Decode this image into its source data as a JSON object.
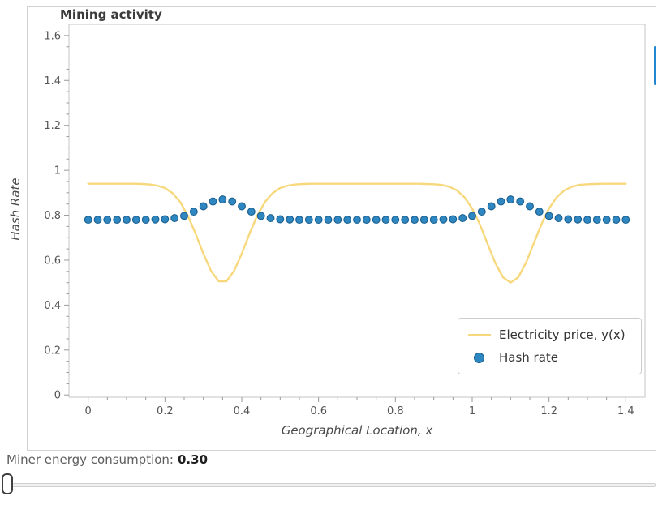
{
  "chart_data": {
    "type": "line",
    "title": "Mining activity",
    "xlabel": "Geographical Location, x",
    "ylabel": "Hash Rate",
    "xlim": [
      -0.05,
      1.45
    ],
    "ylim": [
      -0.01,
      1.65
    ],
    "x_ticks": [
      0,
      0.2,
      0.4,
      0.6,
      0.8,
      1,
      1.2,
      1.4
    ],
    "x_tick_labels": [
      "0",
      "0.2",
      "0.4",
      "0.6",
      "0.8",
      "1",
      "1.2",
      "1.4"
    ],
    "y_ticks": [
      0,
      0.2,
      0.4,
      0.6,
      0.8,
      1,
      1.2,
      1.4,
      1.6
    ],
    "y_tick_labels": [
      "0",
      "0.2",
      "0.4",
      "0.6",
      "0.8",
      "1",
      "1.2",
      "1.4",
      "1.6"
    ],
    "minor_tick_step": 0.05,
    "grid": false,
    "legend_position": "lower right",
    "series": [
      {
        "name": "Electricity price, y(x)",
        "type": "line",
        "color": "#f8d87c",
        "x": [
          0,
          0.02,
          0.04,
          0.06,
          0.08,
          0.1,
          0.12,
          0.14,
          0.16,
          0.18,
          0.2,
          0.22,
          0.24,
          0.26,
          0.28,
          0.3,
          0.32,
          0.34,
          0.36,
          0.38,
          0.4,
          0.42,
          0.44,
          0.46,
          0.48,
          0.5,
          0.52,
          0.54,
          0.56,
          0.58,
          0.6,
          0.62,
          0.64,
          0.66,
          0.68,
          0.7,
          0.72,
          0.74,
          0.76,
          0.78,
          0.8,
          0.82,
          0.84,
          0.86,
          0.88,
          0.9,
          0.92,
          0.94,
          0.96,
          0.98,
          1,
          1.02,
          1.04,
          1.06,
          1.08,
          1.1,
          1.12,
          1.14,
          1.16,
          1.18,
          1.2,
          1.22,
          1.24,
          1.26,
          1.28,
          1.3,
          1.32,
          1.34,
          1.36,
          1.38,
          1.4
        ],
        "y": [
          0.94,
          0.94,
          0.94,
          0.94,
          0.94,
          0.94,
          0.94,
          0.939,
          0.937,
          0.932,
          0.921,
          0.898,
          0.858,
          0.797,
          0.717,
          0.629,
          0.552,
          0.506,
          0.506,
          0.552,
          0.629,
          0.717,
          0.797,
          0.858,
          0.898,
          0.921,
          0.932,
          0.937,
          0.939,
          0.94,
          0.94,
          0.94,
          0.94,
          0.94,
          0.94,
          0.94,
          0.94,
          0.94,
          0.94,
          0.94,
          0.94,
          0.94,
          0.94,
          0.94,
          0.939,
          0.938,
          0.935,
          0.927,
          0.911,
          0.88,
          0.83,
          0.759,
          0.673,
          0.588,
          0.524,
          0.5,
          0.524,
          0.588,
          0.673,
          0.759,
          0.83,
          0.88,
          0.911,
          0.927,
          0.935,
          0.938,
          0.939,
          0.94,
          0.94,
          0.94,
          0.94
        ]
      },
      {
        "name": "Hash rate",
        "type": "scatter",
        "color": "#2f87c1",
        "edge_color": "#1a5f8f",
        "x": [
          0,
          0.025,
          0.05,
          0.075,
          0.1,
          0.125,
          0.15,
          0.175,
          0.2,
          0.225,
          0.25,
          0.275,
          0.3,
          0.325,
          0.35,
          0.375,
          0.4,
          0.425,
          0.45,
          0.475,
          0.5,
          0.525,
          0.55,
          0.575,
          0.6,
          0.625,
          0.65,
          0.675,
          0.7,
          0.725,
          0.75,
          0.775,
          0.8,
          0.825,
          0.85,
          0.875,
          0.9,
          0.925,
          0.95,
          0.975,
          1,
          1.025,
          1.05,
          1.075,
          1.1,
          1.125,
          1.15,
          1.175,
          1.2,
          1.225,
          1.25,
          1.275,
          1.3,
          1.325,
          1.35,
          1.375,
          1.4
        ],
        "y": [
          0.78,
          0.78,
          0.78,
          0.78,
          0.78,
          0.78,
          0.78,
          0.781,
          0.782,
          0.787,
          0.797,
          0.816,
          0.84,
          0.861,
          0.87,
          0.861,
          0.84,
          0.816,
          0.797,
          0.787,
          0.782,
          0.781,
          0.78,
          0.78,
          0.78,
          0.78,
          0.78,
          0.78,
          0.78,
          0.78,
          0.78,
          0.78,
          0.78,
          0.78,
          0.78,
          0.78,
          0.78,
          0.781,
          0.782,
          0.787,
          0.797,
          0.816,
          0.84,
          0.861,
          0.87,
          0.861,
          0.84,
          0.816,
          0.797,
          0.787,
          0.782,
          0.781,
          0.78,
          0.78,
          0.78,
          0.78,
          0.78
        ]
      }
    ]
  },
  "controls": {
    "consumption_label": "Miner energy consumption:",
    "consumption_value": "0.30",
    "slider": {
      "position": "min"
    }
  },
  "decorations": {
    "right_scrollbar_color": "#2287d0"
  }
}
